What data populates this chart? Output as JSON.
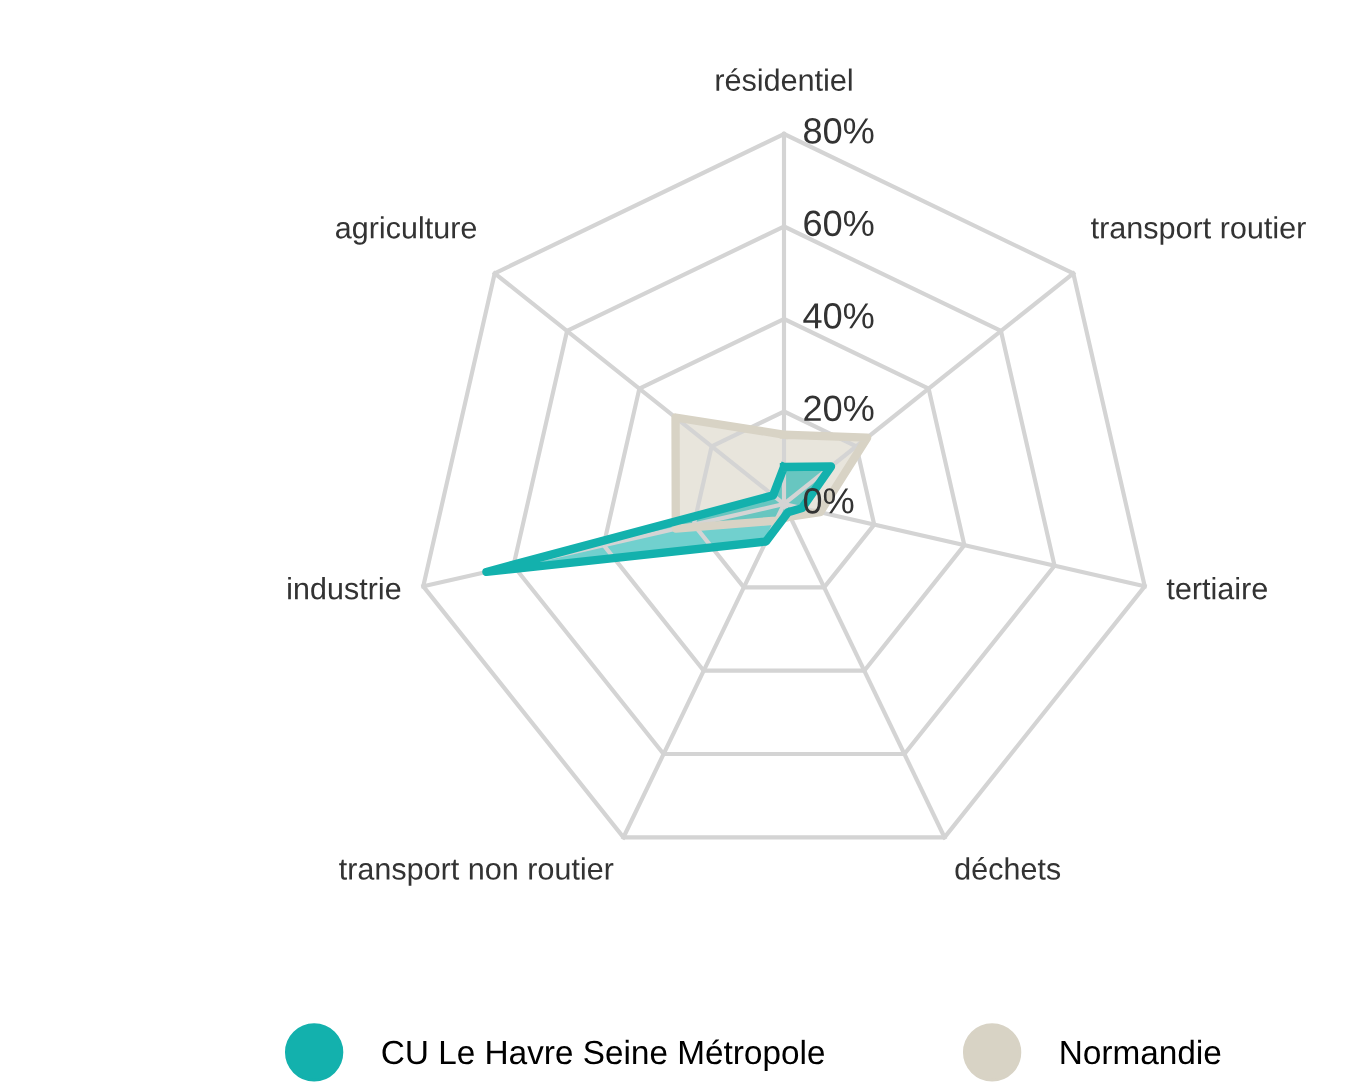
{
  "chart_data": {
    "type": "radar",
    "categories": [
      "résidentiel",
      "transport routier",
      "tertiaire",
      "déchets",
      "transport non routier",
      "industrie",
      "agriculture"
    ],
    "series": [
      {
        "name": "CU Le Havre Seine Métropole",
        "color": "#13b1ad",
        "values": [
          8,
          13,
          4,
          2,
          9,
          66,
          3
        ]
      },
      {
        "name": "Normandie",
        "color": "#d8d3c5",
        "values": [
          15,
          23,
          8,
          3,
          4,
          24,
          30
        ]
      }
    ],
    "ylim": [
      0,
      80
    ],
    "yticks": [
      {
        "value": 0,
        "label": "0%"
      },
      {
        "value": 20,
        "label": "20%"
      },
      {
        "value": 40,
        "label": "40%"
      },
      {
        "value": 60,
        "label": "60%"
      },
      {
        "value": 80,
        "label": "80%"
      }
    ],
    "grid": true,
    "legend": "bottom"
  }
}
